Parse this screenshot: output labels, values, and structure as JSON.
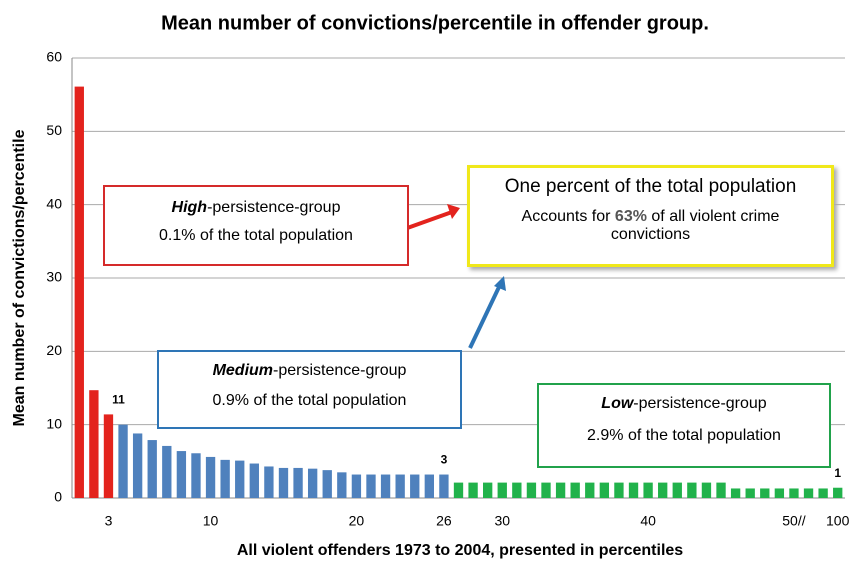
{
  "chart_data": {
    "type": "bar",
    "title": "Mean number of convictions/percentile in offender group.",
    "x_label": "All violent offenders 1973 to 2004, presented in percentiles",
    "y_label": "Mean number of convictions/percentile",
    "categories": [
      null,
      null,
      "3",
      null,
      null,
      null,
      null,
      null,
      null,
      "10",
      null,
      null,
      null,
      null,
      null,
      null,
      null,
      null,
      null,
      "20",
      null,
      null,
      null,
      null,
      null,
      "26",
      null,
      null,
      null,
      "30",
      null,
      null,
      null,
      null,
      null,
      null,
      null,
      null,
      null,
      "40",
      null,
      null,
      null,
      null,
      null,
      null,
      null,
      null,
      null,
      "50//",
      null,
      null,
      "100"
    ],
    "values": [
      56.1,
      14.7,
      11.4,
      10.0,
      8.8,
      7.9,
      7.1,
      6.4,
      6.1,
      5.6,
      5.2,
      5.1,
      4.7,
      4.3,
      4.1,
      4.1,
      4.0,
      3.8,
      3.5,
      3.2,
      3.2,
      3.2,
      3.2,
      3.2,
      3.2,
      3.2,
      2.1,
      2.1,
      2.1,
      2.1,
      2.1,
      2.1,
      2.1,
      2.1,
      2.1,
      2.1,
      2.1,
      2.1,
      2.1,
      2.1,
      2.1,
      2.1,
      2.1,
      2.1,
      2.1,
      1.3,
      1.3,
      1.3,
      1.3,
      1.3,
      1.3,
      1.3,
      1.4
    ],
    "value_labels": [
      null,
      null,
      "11",
      null,
      null,
      null,
      null,
      null,
      null,
      null,
      null,
      null,
      null,
      null,
      null,
      null,
      null,
      null,
      null,
      null,
      null,
      null,
      null,
      null,
      null,
      "3",
      null,
      null,
      null,
      null,
      null,
      null,
      null,
      null,
      null,
      null,
      null,
      null,
      null,
      null,
      null,
      null,
      null,
      null,
      null,
      null,
      null,
      null,
      null,
      null,
      null,
      null,
      "1"
    ],
    "colors": [
      "#e3231d",
      "#e3231d",
      "#e3231d",
      "#4f81bd",
      "#4f81bd",
      "#4f81bd",
      "#4f81bd",
      "#4f81bd",
      "#4f81bd",
      "#4f81bd",
      "#4f81bd",
      "#4f81bd",
      "#4f81bd",
      "#4f81bd",
      "#4f81bd",
      "#4f81bd",
      "#4f81bd",
      "#4f81bd",
      "#4f81bd",
      "#4f81bd",
      "#4f81bd",
      "#4f81bd",
      "#4f81bd",
      "#4f81bd",
      "#4f81bd",
      "#4f81bd",
      "#21b24b",
      "#21b24b",
      "#21b24b",
      "#21b24b",
      "#21b24b",
      "#21b24b",
      "#21b24b",
      "#21b24b",
      "#21b24b",
      "#21b24b",
      "#21b24b",
      "#21b24b",
      "#21b24b",
      "#21b24b",
      "#21b24b",
      "#21b24b",
      "#21b24b",
      "#21b24b",
      "#21b24b",
      "#21b24b",
      "#21b24b",
      "#21b24b",
      "#21b24b",
      "#21b24b",
      "#21b24b",
      "#21b24b",
      "#21b24b"
    ],
    "ylim": [
      0,
      60
    ],
    "yticks": [
      0,
      10,
      20,
      30,
      40,
      50,
      60
    ],
    "grid": true,
    "annotations": {
      "high": {
        "emph": "High",
        "rest": "-persistence-group",
        "text": "0.1% of the  total population"
      },
      "medium": {
        "emph": "Medium",
        "rest": "-persistence-group",
        "text": "0.9% of the total population"
      },
      "low": {
        "emph": "Low",
        "rest": "-persistence-group",
        "text": "2.9% of the total population"
      },
      "callout": {
        "title": "One percent of the total population",
        "before": "Accounts for ",
        "emph": "63%",
        "after": " of all violent crime convictions"
      }
    }
  }
}
